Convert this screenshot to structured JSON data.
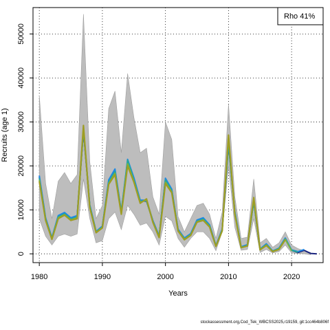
{
  "chart_data": {
    "type": "line",
    "xlabel": "Years",
    "ylabel": "Recruits (age 1)",
    "xlim": [
      1979,
      2025
    ],
    "ylim": [
      -2000,
      56000
    ],
    "x_ticks": [
      1980,
      1990,
      2000,
      2010,
      2020
    ],
    "y_ticks": [
      0,
      10000,
      20000,
      30000,
      40000,
      50000
    ],
    "grid": "dotted",
    "legend": {
      "text": "Rho 41%",
      "placement": "top-right"
    },
    "band": {
      "x": [
        1980,
        1981,
        1982,
        1983,
        1984,
        1985,
        1986,
        1987,
        1988,
        1989,
        1990,
        1991,
        1992,
        1993,
        1994,
        1995,
        1996,
        1997,
        1998,
        1999,
        2000,
        2001,
        2002,
        2003,
        2004,
        2005,
        2006,
        2007,
        2008,
        2009,
        2010,
        2011,
        2012,
        2013,
        2014,
        2015,
        2016,
        2017,
        2018,
        2019,
        2020,
        2021,
        2022,
        2023
      ],
      "upper": [
        36000,
        16000,
        8000,
        16500,
        18500,
        16000,
        18000,
        54500,
        21000,
        8000,
        11000,
        33000,
        37000,
        23000,
        41000,
        31000,
        23000,
        24000,
        13000,
        9000,
        30000,
        26000,
        8500,
        5000,
        8000,
        11000,
        11500,
        9000,
        3500,
        9500,
        34000,
        13000,
        3500,
        3800,
        17000,
        2500,
        3500,
        1500,
        2500,
        5000,
        2000,
        1200,
        700,
        300
      ],
      "lower": [
        8000,
        4000,
        2000,
        4000,
        4500,
        4000,
        4500,
        17000,
        8000,
        2500,
        3000,
        8000,
        9500,
        5500,
        11000,
        9000,
        6500,
        7000,
        5000,
        2000,
        8500,
        7500,
        3500,
        1500,
        3500,
        5000,
        5000,
        3500,
        700,
        5000,
        20000,
        6000,
        800,
        1000,
        8000,
        300,
        1000,
        200,
        500,
        2000,
        200,
        100,
        0,
        -200
      ]
    },
    "series": [
      {
        "color": "#1a237e",
        "x": [
          1980,
          1981,
          1982,
          1983,
          1984,
          1985,
          1986,
          1987,
          1988,
          1989,
          1990,
          1991,
          1992,
          1993,
          1994,
          1995,
          1996,
          1997,
          1998,
          1999,
          2000,
          2001,
          2002,
          2003,
          2004,
          2005,
          2006,
          2007,
          2008,
          2009,
          2010,
          2011,
          2012,
          2013,
          2014,
          2015,
          2016,
          2017,
          2018,
          2019,
          2020,
          2021,
          2022,
          2023,
          2024
        ],
        "values": [
          17500,
          8000,
          3500,
          8500,
          9200,
          8000,
          8500,
          28000,
          11000,
          5000,
          6200,
          16500,
          19000,
          9500,
          21000,
          17000,
          12000,
          12000,
          7500,
          4000,
          17000,
          14500,
          5500,
          3500,
          4500,
          7500,
          8000,
          6500,
          1800,
          5500,
          25000,
          9500,
          1500,
          2000,
          12000,
          1000,
          2200,
          600,
          1200,
          3500,
          800,
          300,
          800,
          100,
          0
        ]
      },
      {
        "color": "#1e88e5",
        "x": [
          1980,
          1981,
          1982,
          1983,
          1984,
          1985,
          1986,
          1987,
          1988,
          1989,
          1990,
          1991,
          1992,
          1993,
          1994,
          1995,
          1996,
          1997,
          1998,
          1999,
          2000,
          2001,
          2002,
          2003,
          2004,
          2005,
          2006,
          2007,
          2008,
          2009,
          2010,
          2011,
          2012,
          2013,
          2014,
          2015,
          2016,
          2017,
          2018,
          2019,
          2020,
          2021,
          2022
        ],
        "values": [
          17800,
          8200,
          3700,
          8700,
          9400,
          8200,
          8700,
          28500,
          11200,
          5100,
          6300,
          16800,
          19300,
          9700,
          21500,
          17300,
          12200,
          12200,
          7600,
          4100,
          17200,
          14700,
          5600,
          3600,
          4600,
          7700,
          8200,
          6600,
          1900,
          5600,
          25500,
          9700,
          1600,
          2100,
          12200,
          1100,
          2300,
          650,
          1300,
          3600,
          900,
          500,
          1000
        ]
      },
      {
        "color": "#26a69a",
        "x": [
          1980,
          1981,
          1982,
          1983,
          1984,
          1985,
          1986,
          1987,
          1988,
          1989,
          1990,
          1991,
          1992,
          1993,
          1994,
          1995,
          1996,
          1997,
          1998,
          1999,
          2000,
          2001,
          2002,
          2003,
          2004,
          2005,
          2006,
          2007,
          2008,
          2009,
          2010,
          2011,
          2012,
          2013,
          2014,
          2015,
          2016,
          2017,
          2018,
          2019,
          2020,
          2021
        ],
        "values": [
          17200,
          7900,
          3500,
          8400,
          9100,
          7900,
          8400,
          28300,
          10900,
          5000,
          6100,
          16300,
          18700,
          9400,
          21300,
          16800,
          11900,
          12100,
          7400,
          3900,
          16800,
          14300,
          5400,
          3400,
          4400,
          7400,
          7900,
          6400,
          1800,
          5400,
          25200,
          9400,
          1500,
          1900,
          11900,
          1000,
          2100,
          600,
          1200,
          3400,
          800,
          400
        ]
      },
      {
        "color": "#7cb342",
        "x": [
          1980,
          1981,
          1982,
          1983,
          1984,
          1985,
          1986,
          1987,
          1988,
          1989,
          1990,
          1991,
          1992,
          1993,
          1994,
          1995,
          1996,
          1997,
          1998,
          1999,
          2000,
          2001,
          2002,
          2003,
          2004,
          2005,
          2006,
          2007,
          2008,
          2009,
          2010,
          2011,
          2012,
          2013,
          2014,
          2015,
          2016,
          2017,
          2018,
          2019,
          2020
        ],
        "values": [
          16800,
          7700,
          3400,
          8200,
          8900,
          7700,
          8200,
          28800,
          10700,
          4900,
          6000,
          16000,
          18300,
          9200,
          20500,
          16500,
          11700,
          12300,
          7300,
          3800,
          16300,
          14100,
          5300,
          3300,
          4300,
          7300,
          7700,
          6200,
          1700,
          5300,
          26500,
          9200,
          1400,
          1800,
          12500,
          950,
          2000,
          550,
          1100,
          3300,
          700
        ]
      },
      {
        "color": "#9e9d24",
        "x": [
          1980,
          1981,
          1982,
          1983,
          1984,
          1985,
          1986,
          1987,
          1988,
          1989,
          1990,
          1991,
          1992,
          1993,
          1994,
          1995,
          1996,
          1997,
          1998,
          1999,
          2000,
          2001,
          2002,
          2003,
          2004,
          2005,
          2006,
          2007,
          2008,
          2009,
          2010,
          2011,
          2012,
          2013,
          2014,
          2015,
          2016,
          2017,
          2018,
          2019
        ],
        "values": [
          16500,
          7600,
          3300,
          8000,
          8800,
          7600,
          8000,
          29200,
          10500,
          4800,
          5900,
          15800,
          18000,
          9000,
          20000,
          16300,
          11500,
          12500,
          7200,
          3700,
          16000,
          13900,
          5200,
          3200,
          4200,
          7200,
          7600,
          6100,
          1700,
          5200,
          27000,
          9000,
          1400,
          1800,
          12800,
          900,
          1900,
          500,
          1000,
          3200
        ]
      }
    ],
    "footer": "stockassessment.org,Cod_Tek_WBCSS2025,r19159, git:1cc464b806f"
  }
}
